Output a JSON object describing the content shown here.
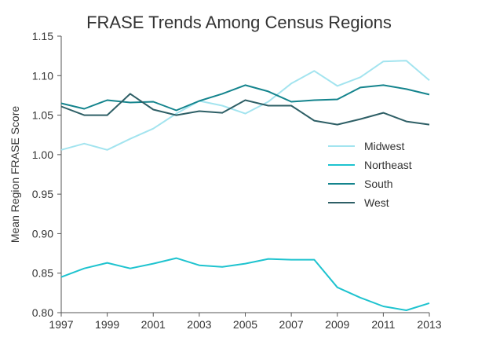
{
  "chart_data": {
    "type": "line",
    "title": "FRASE Trends Among Census Regions",
    "xlabel": "",
    "ylabel": "Mean Region FRASE Score",
    "x": [
      1997,
      1998,
      1999,
      2000,
      2001,
      2002,
      2003,
      2004,
      2005,
      2006,
      2007,
      2008,
      2009,
      2010,
      2011,
      2012,
      2013
    ],
    "xlim": [
      1997,
      2013
    ],
    "ylim": [
      0.8,
      1.15
    ],
    "x_ticks": [
      "1997",
      "1999",
      "2001",
      "2003",
      "2005",
      "2007",
      "2009",
      "2011",
      "2013"
    ],
    "y_ticks": [
      "0.80",
      "0.85",
      "0.90",
      "0.95",
      "1.00",
      "1.05",
      "1.10",
      "1.15"
    ],
    "grid": false,
    "legend_position": "right",
    "series": [
      {
        "name": "Midwest",
        "color": "#a3e4ef",
        "values": [
          1.006,
          1.014,
          1.006,
          1.02,
          1.033,
          1.052,
          1.068,
          1.062,
          1.052,
          1.067,
          1.09,
          1.106,
          1.087,
          1.098,
          1.118,
          1.119,
          1.094
        ]
      },
      {
        "name": "Northeast",
        "color": "#1ec3cf",
        "values": [
          0.845,
          0.856,
          0.863,
          0.856,
          0.862,
          0.869,
          0.86,
          0.858,
          0.862,
          0.868,
          0.867,
          0.867,
          0.832,
          0.819,
          0.808,
          0.803,
          0.812
        ]
      },
      {
        "name": "South",
        "color": "#14848d",
        "values": [
          1.065,
          1.058,
          1.069,
          1.066,
          1.067,
          1.056,
          1.068,
          1.077,
          1.088,
          1.08,
          1.067,
          1.069,
          1.07,
          1.085,
          1.088,
          1.083,
          1.076
        ]
      },
      {
        "name": "West",
        "color": "#2e5f66",
        "values": [
          1.061,
          1.05,
          1.05,
          1.077,
          1.057,
          1.05,
          1.055,
          1.053,
          1.069,
          1.062,
          1.062,
          1.043,
          1.038,
          1.045,
          1.053,
          1.042,
          1.038
        ]
      }
    ]
  }
}
